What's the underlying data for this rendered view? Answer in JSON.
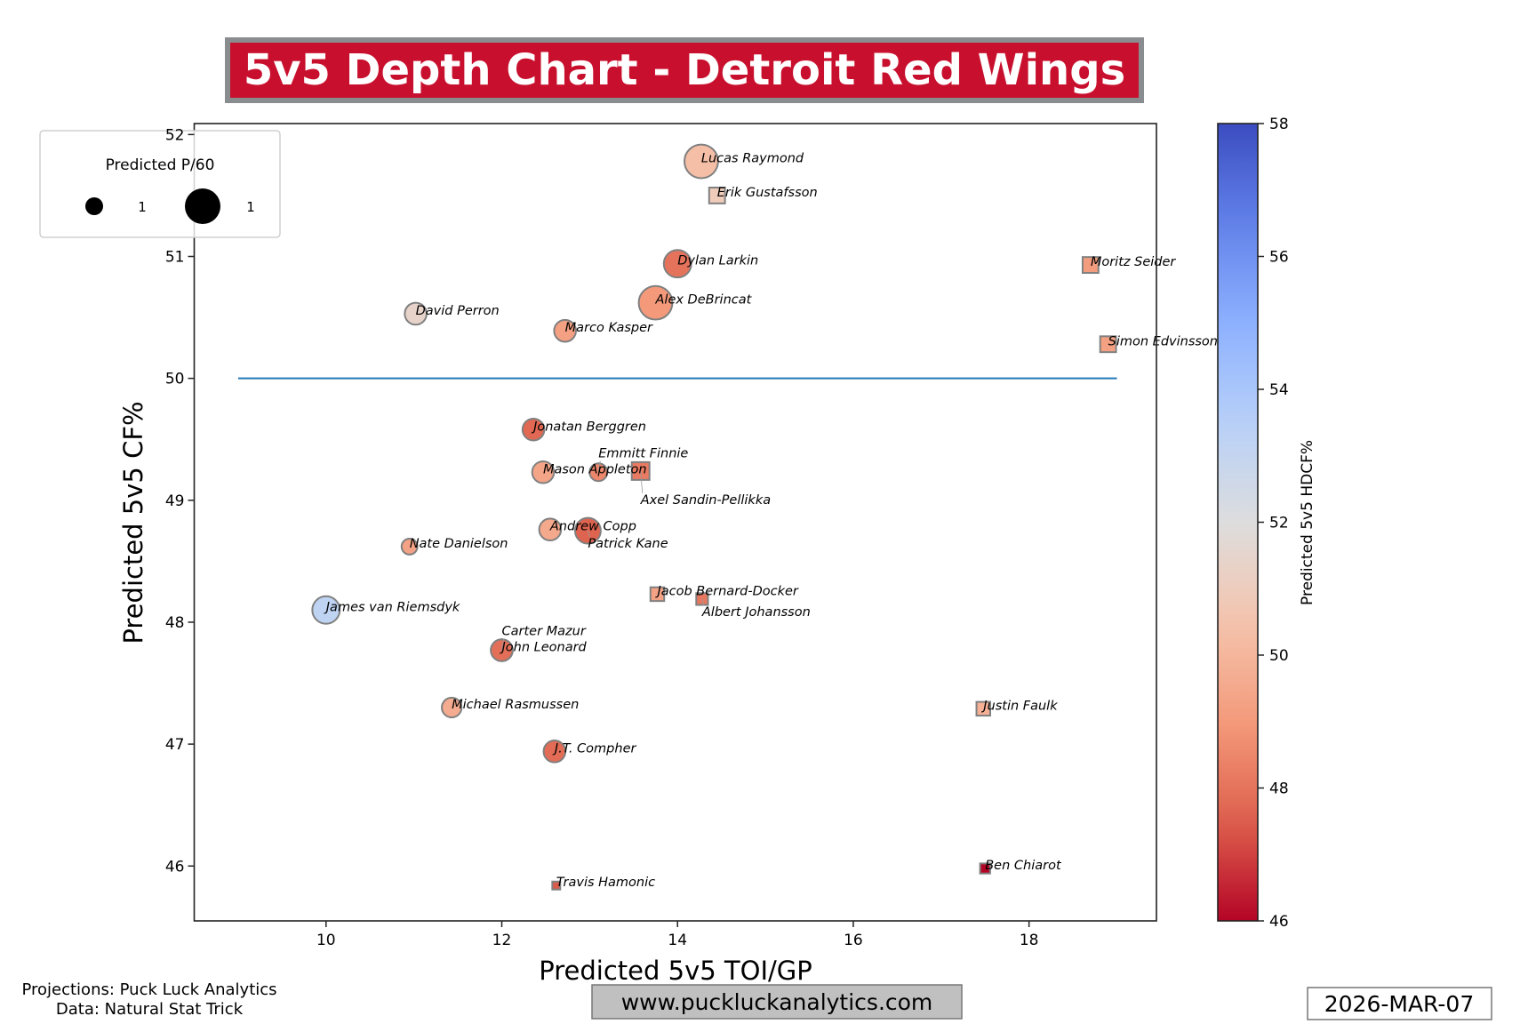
{
  "chart_data": {
    "type": "scatter",
    "title": "5v5 Depth Chart - Detroit Red Wings",
    "xlabel": "Predicted 5v5 TOI/GP",
    "ylabel": "Predicted 5v5 CF%",
    "xlim": [
      8.5,
      19.45
    ],
    "ylim": [
      45.55,
      52.09
    ],
    "xticks": [
      10,
      12,
      14,
      16,
      18
    ],
    "yticks": [
      46,
      47,
      48,
      49,
      50,
      51,
      52
    ],
    "grid": false,
    "reference_line": {
      "y": 50,
      "x_from": 9,
      "x_to": 19,
      "color": "#1f77b4"
    },
    "size_legend": {
      "title": "Predicted P/60",
      "entries": [
        "1",
        "1"
      ],
      "placement": "top-left"
    },
    "colorbar": {
      "label": "Predicted 5v5 HDCF%",
      "range": [
        46,
        58
      ],
      "ticks": [
        46,
        48,
        50,
        52,
        54,
        56,
        58
      ],
      "colormap": "coolwarm_r"
    },
    "title_colors": {
      "background": "#c8102e",
      "border": "#8a8d8f",
      "text": "#ffffff"
    },
    "marker_shapes": {
      "circle": "forward",
      "square": "defense"
    },
    "points": [
      {
        "name": "Lucas Raymond",
        "x": 14.27,
        "y": 51.78,
        "hdcf": 50.3,
        "p60": 1.8,
        "shape": "circle"
      },
      {
        "name": "Erik Gustafsson",
        "x": 14.45,
        "y": 51.5,
        "hdcf": 50.9,
        "p60": 0.4,
        "shape": "square"
      },
      {
        "name": "Dylan Larkin",
        "x": 14.0,
        "y": 50.94,
        "hdcf": 48.0,
        "p60": 1.2,
        "shape": "circle"
      },
      {
        "name": "Moritz Seider",
        "x": 18.7,
        "y": 50.93,
        "hdcf": 49.1,
        "p60": 0.4,
        "shape": "square"
      },
      {
        "name": "Alex DeBrincat",
        "x": 13.75,
        "y": 50.62,
        "hdcf": 49.0,
        "p60": 1.8,
        "shape": "circle"
      },
      {
        "name": "David Perron",
        "x": 11.02,
        "y": 50.53,
        "hdcf": 51.4,
        "p60": 0.76,
        "shape": "circle"
      },
      {
        "name": "Marco Kasper",
        "x": 12.72,
        "y": 50.39,
        "hdcf": 49.2,
        "p60": 0.76,
        "shape": "circle"
      },
      {
        "name": "Simon Edvinsson",
        "x": 18.9,
        "y": 50.28,
        "hdcf": 49.2,
        "p60": 0.4,
        "shape": "square"
      },
      {
        "name": "Jonatan Berggren",
        "x": 12.36,
        "y": 49.58,
        "hdcf": 47.7,
        "p60": 0.76,
        "shape": "circle"
      },
      {
        "name": "Mason Appleton",
        "x": 12.47,
        "y": 49.23,
        "hdcf": 49.4,
        "p60": 0.76,
        "shape": "circle"
      },
      {
        "name": "Emmitt Finnie",
        "x": 13.1,
        "y": 49.23,
        "hdcf": 48.5,
        "p60": 0.5,
        "shape": "circle"
      },
      {
        "name": "Axel Sandin-Pellikka",
        "x": 13.58,
        "y": 49.24,
        "hdcf": 48.2,
        "p60": 0.5,
        "shape": "square"
      },
      {
        "name": "Andrew Copp",
        "x": 12.55,
        "y": 48.76,
        "hdcf": 49.5,
        "p60": 0.76,
        "shape": "circle"
      },
      {
        "name": "Patrick Kane",
        "x": 12.98,
        "y": 48.75,
        "hdcf": 47.6,
        "p60": 1.05,
        "shape": "circle"
      },
      {
        "name": "Nate Danielson",
        "x": 10.95,
        "y": 48.62,
        "hdcf": 49.3,
        "p60": 0.4,
        "shape": "circle"
      },
      {
        "name": "Jacob Bernard-Docker",
        "x": 13.77,
        "y": 48.23,
        "hdcf": 49.3,
        "p60": 0.3,
        "shape": "square"
      },
      {
        "name": "Albert Johansson",
        "x": 14.28,
        "y": 48.19,
        "hdcf": 48.1,
        "p60": 0.22,
        "shape": "square"
      },
      {
        "name": "James van Riemsdyk",
        "x": 10.0,
        "y": 48.1,
        "hdcf": 53.2,
        "p60": 1.2,
        "shape": "circle"
      },
      {
        "name": "John Leonard",
        "x": 12.0,
        "y": 47.77,
        "hdcf": 47.9,
        "p60": 0.76,
        "shape": "circle"
      },
      {
        "name": "Carter Mazur",
        "x": 12.0,
        "y": 47.77,
        "hdcf": 47.9,
        "p60": 0.76,
        "shape": "circle"
      },
      {
        "name": "Michael Rasmussen",
        "x": 11.43,
        "y": 47.3,
        "hdcf": 49.6,
        "p60": 0.62,
        "shape": "circle"
      },
      {
        "name": "Justin Faulk",
        "x": 17.48,
        "y": 47.29,
        "hdcf": 49.8,
        "p60": 0.3,
        "shape": "square"
      },
      {
        "name": "J.T. Compher",
        "x": 12.6,
        "y": 46.94,
        "hdcf": 47.8,
        "p60": 0.76,
        "shape": "circle"
      },
      {
        "name": "Ben Chiarot",
        "x": 17.5,
        "y": 45.98,
        "hdcf": 46.0,
        "p60": 0.16,
        "shape": "square"
      },
      {
        "name": "Travis Hamonic",
        "x": 12.62,
        "y": 45.84,
        "hdcf": 47.4,
        "p60": 0.1,
        "shape": "square"
      }
    ]
  },
  "footer": {
    "credits_line1": "Projections: Puck Luck Analytics",
    "credits_line2": "Data: Natural Stat Trick",
    "website": "www.puckluckanalytics.com",
    "date": "2026-MAR-07"
  }
}
